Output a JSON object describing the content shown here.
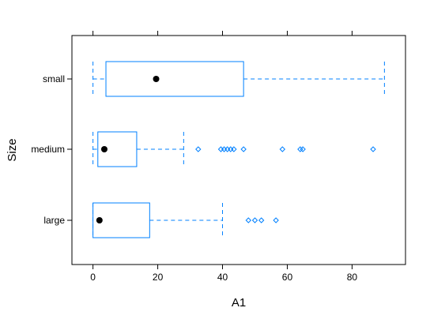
{
  "chart_data": {
    "type": "boxplot",
    "orientation": "horizontal",
    "title": "",
    "xlabel": "A1",
    "ylabel": "Size",
    "xlim": [
      -6.5,
      96.5
    ],
    "x_ticks": [
      0,
      20,
      40,
      60,
      80
    ],
    "x_tick_labels": [
      "0",
      "20",
      "40",
      "60",
      "80"
    ],
    "categories": [
      "small",
      "medium",
      "large"
    ],
    "grid": false,
    "box_color": "#0080ff",
    "median_color": "#000000",
    "boxes": [
      {
        "category": "small",
        "whisker_low": 0,
        "q1": 4,
        "median": 19.5,
        "q3": 46.5,
        "whisker_high": 90,
        "outliers": []
      },
      {
        "category": "medium",
        "whisker_low": 0,
        "q1": 1.5,
        "median": 3.5,
        "q3": 13.5,
        "whisker_high": 28,
        "outliers": [
          32.5,
          39.5,
          40.5,
          41.5,
          42.5,
          43.5,
          46.5,
          58.5,
          64,
          64.8,
          86.5
        ]
      },
      {
        "category": "large",
        "whisker_low": 0,
        "q1": 0,
        "median": 2,
        "q3": 17.5,
        "whisker_high": 40,
        "outliers": [
          48,
          50,
          52,
          56.5
        ]
      }
    ]
  }
}
